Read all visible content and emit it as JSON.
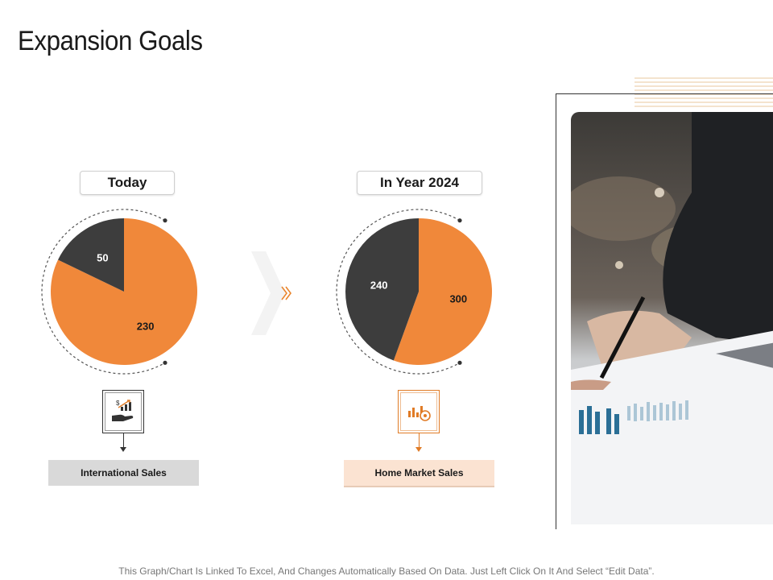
{
  "page": {
    "title": "Expansion Goals"
  },
  "colors": {
    "accent": "#f0883a",
    "dark": "#3d3d3d",
    "intl_label_bg": "#d9d9d9",
    "home_label_bg": "#fbe3d2"
  },
  "chart_data": [
    {
      "type": "pie",
      "title": "Today",
      "values": [
        230,
        50
      ],
      "colors": [
        "#f0883a",
        "#3d3d3d"
      ]
    },
    {
      "type": "pie",
      "title": "In Year 2024",
      "values": [
        300,
        240
      ],
      "colors": [
        "#f0883a",
        "#3d3d3d"
      ]
    }
  ],
  "cards": [
    {
      "label": "International Sales",
      "icon": "money-growth-icon"
    },
    {
      "label": "Home Market Sales",
      "icon": "bar-chart-coin-icon"
    }
  ],
  "footer": {
    "text": "This Graph/Chart Is Linked To Excel, And Changes Automatically Based On Data. Just Left Click On It And Select “Edit Data”."
  }
}
